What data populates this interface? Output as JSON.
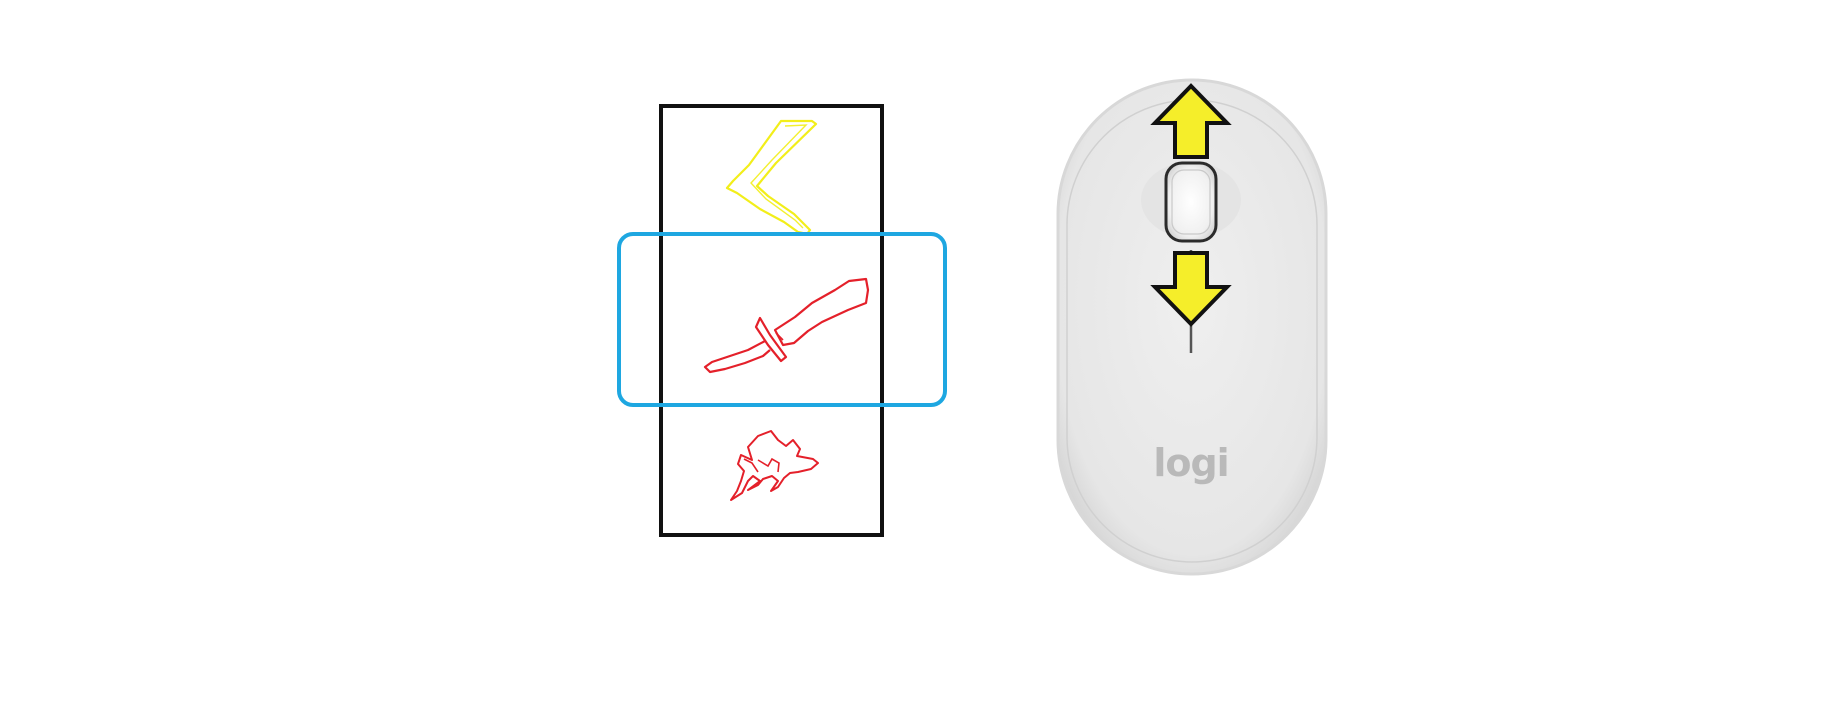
{
  "diagram": {
    "selector": {
      "items": [
        {
          "name": "boomerang",
          "icon": "boomerang-icon",
          "color": "#f2ee1a",
          "selected": false
        },
        {
          "name": "knife",
          "icon": "knife-icon",
          "color": "#e4202a",
          "selected": true
        },
        {
          "name": "hand",
          "icon": "hand-icon",
          "color": "#e4202a",
          "selected": false
        }
      ],
      "frame_color": "#111111",
      "highlight_color": "#1ea7e1"
    },
    "mouse": {
      "brand_label": "logi",
      "body_color": "#ebebeb",
      "scroll_up_icon": "arrow-up-icon",
      "scroll_down_icon": "arrow-down-icon",
      "arrow_color": "#f5ee2a"
    }
  }
}
